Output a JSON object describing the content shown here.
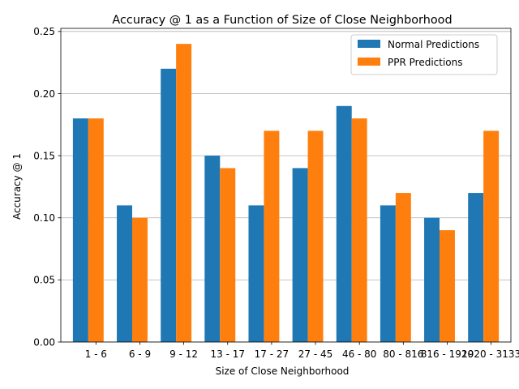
{
  "chart_data": {
    "type": "bar",
    "title": "Accuracy @ 1 as a Function of Size of Close Neighborhood",
    "xlabel": "Size of Close Neighborhood",
    "ylabel": "Accuracy @ 1",
    "categories": [
      "1 - 6",
      "6 - 9",
      "9 - 12",
      "13 - 17",
      "17 - 27",
      "27 - 45",
      "46 - 80",
      "80 - 816",
      "816 - 1920",
      "1920 - 3133"
    ],
    "series": [
      {
        "name": "Normal Predictions",
        "color": "#1f77b4",
        "values": [
          0.18,
          0.11,
          0.22,
          0.15,
          0.11,
          0.14,
          0.19,
          0.11,
          0.1,
          0.12
        ]
      },
      {
        "name": "PPR Predictions",
        "color": "#ff7f0e",
        "values": [
          0.18,
          0.1,
          0.24,
          0.14,
          0.17,
          0.17,
          0.18,
          0.12,
          0.09,
          0.17
        ]
      }
    ],
    "ylim": [
      0,
      0.2525
    ],
    "yticks": [
      0.0,
      0.05,
      0.1,
      0.15,
      0.2,
      0.25
    ],
    "ytick_labels": [
      "0.00",
      "0.05",
      "0.10",
      "0.15",
      "0.20",
      "0.25"
    ],
    "grid": "y",
    "legend": "top-right"
  }
}
